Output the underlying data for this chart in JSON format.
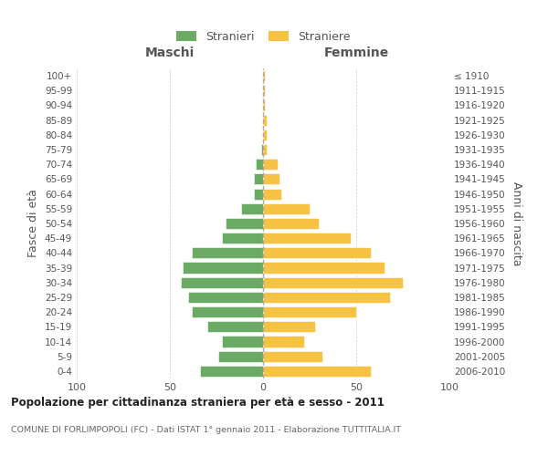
{
  "age_groups": [
    "0-4",
    "5-9",
    "10-14",
    "15-19",
    "20-24",
    "25-29",
    "30-34",
    "35-39",
    "40-44",
    "45-49",
    "50-54",
    "55-59",
    "60-64",
    "65-69",
    "70-74",
    "75-79",
    "80-84",
    "85-89",
    "90-94",
    "95-99",
    "100+"
  ],
  "birth_years": [
    "2006-2010",
    "2001-2005",
    "1996-2000",
    "1991-1995",
    "1986-1990",
    "1981-1985",
    "1976-1980",
    "1971-1975",
    "1966-1970",
    "1961-1965",
    "1956-1960",
    "1951-1955",
    "1946-1950",
    "1941-1945",
    "1936-1940",
    "1931-1935",
    "1926-1930",
    "1921-1925",
    "1916-1920",
    "1911-1915",
    "≤ 1910"
  ],
  "maschi": [
    34,
    24,
    22,
    30,
    38,
    40,
    44,
    43,
    38,
    22,
    20,
    12,
    5,
    5,
    4,
    1,
    0,
    0,
    0,
    0,
    0
  ],
  "femmine": [
    58,
    32,
    22,
    28,
    50,
    68,
    75,
    65,
    58,
    47,
    30,
    25,
    10,
    9,
    8,
    2,
    2,
    2,
    1,
    1,
    1
  ],
  "color_maschi": "#6aaa64",
  "color_femmine": "#f5c242",
  "background_color": "#ffffff",
  "grid_color": "#cccccc",
  "title": "Popolazione per cittadinanza straniera per età e sesso - 2011",
  "subtitle": "COMUNE DI FORLIMPOPOLI (FC) - Dati ISTAT 1° gennaio 2011 - Elaborazione TUTTITALIA.IT",
  "ylabel_left": "Fasce di età",
  "ylabel_right": "Anni di nascita",
  "xlim": 100,
  "legend_stranieri": "Stranieri",
  "legend_straniere": "Straniere",
  "maschi_label": "Maschi",
  "femmine_label": "Femmine"
}
